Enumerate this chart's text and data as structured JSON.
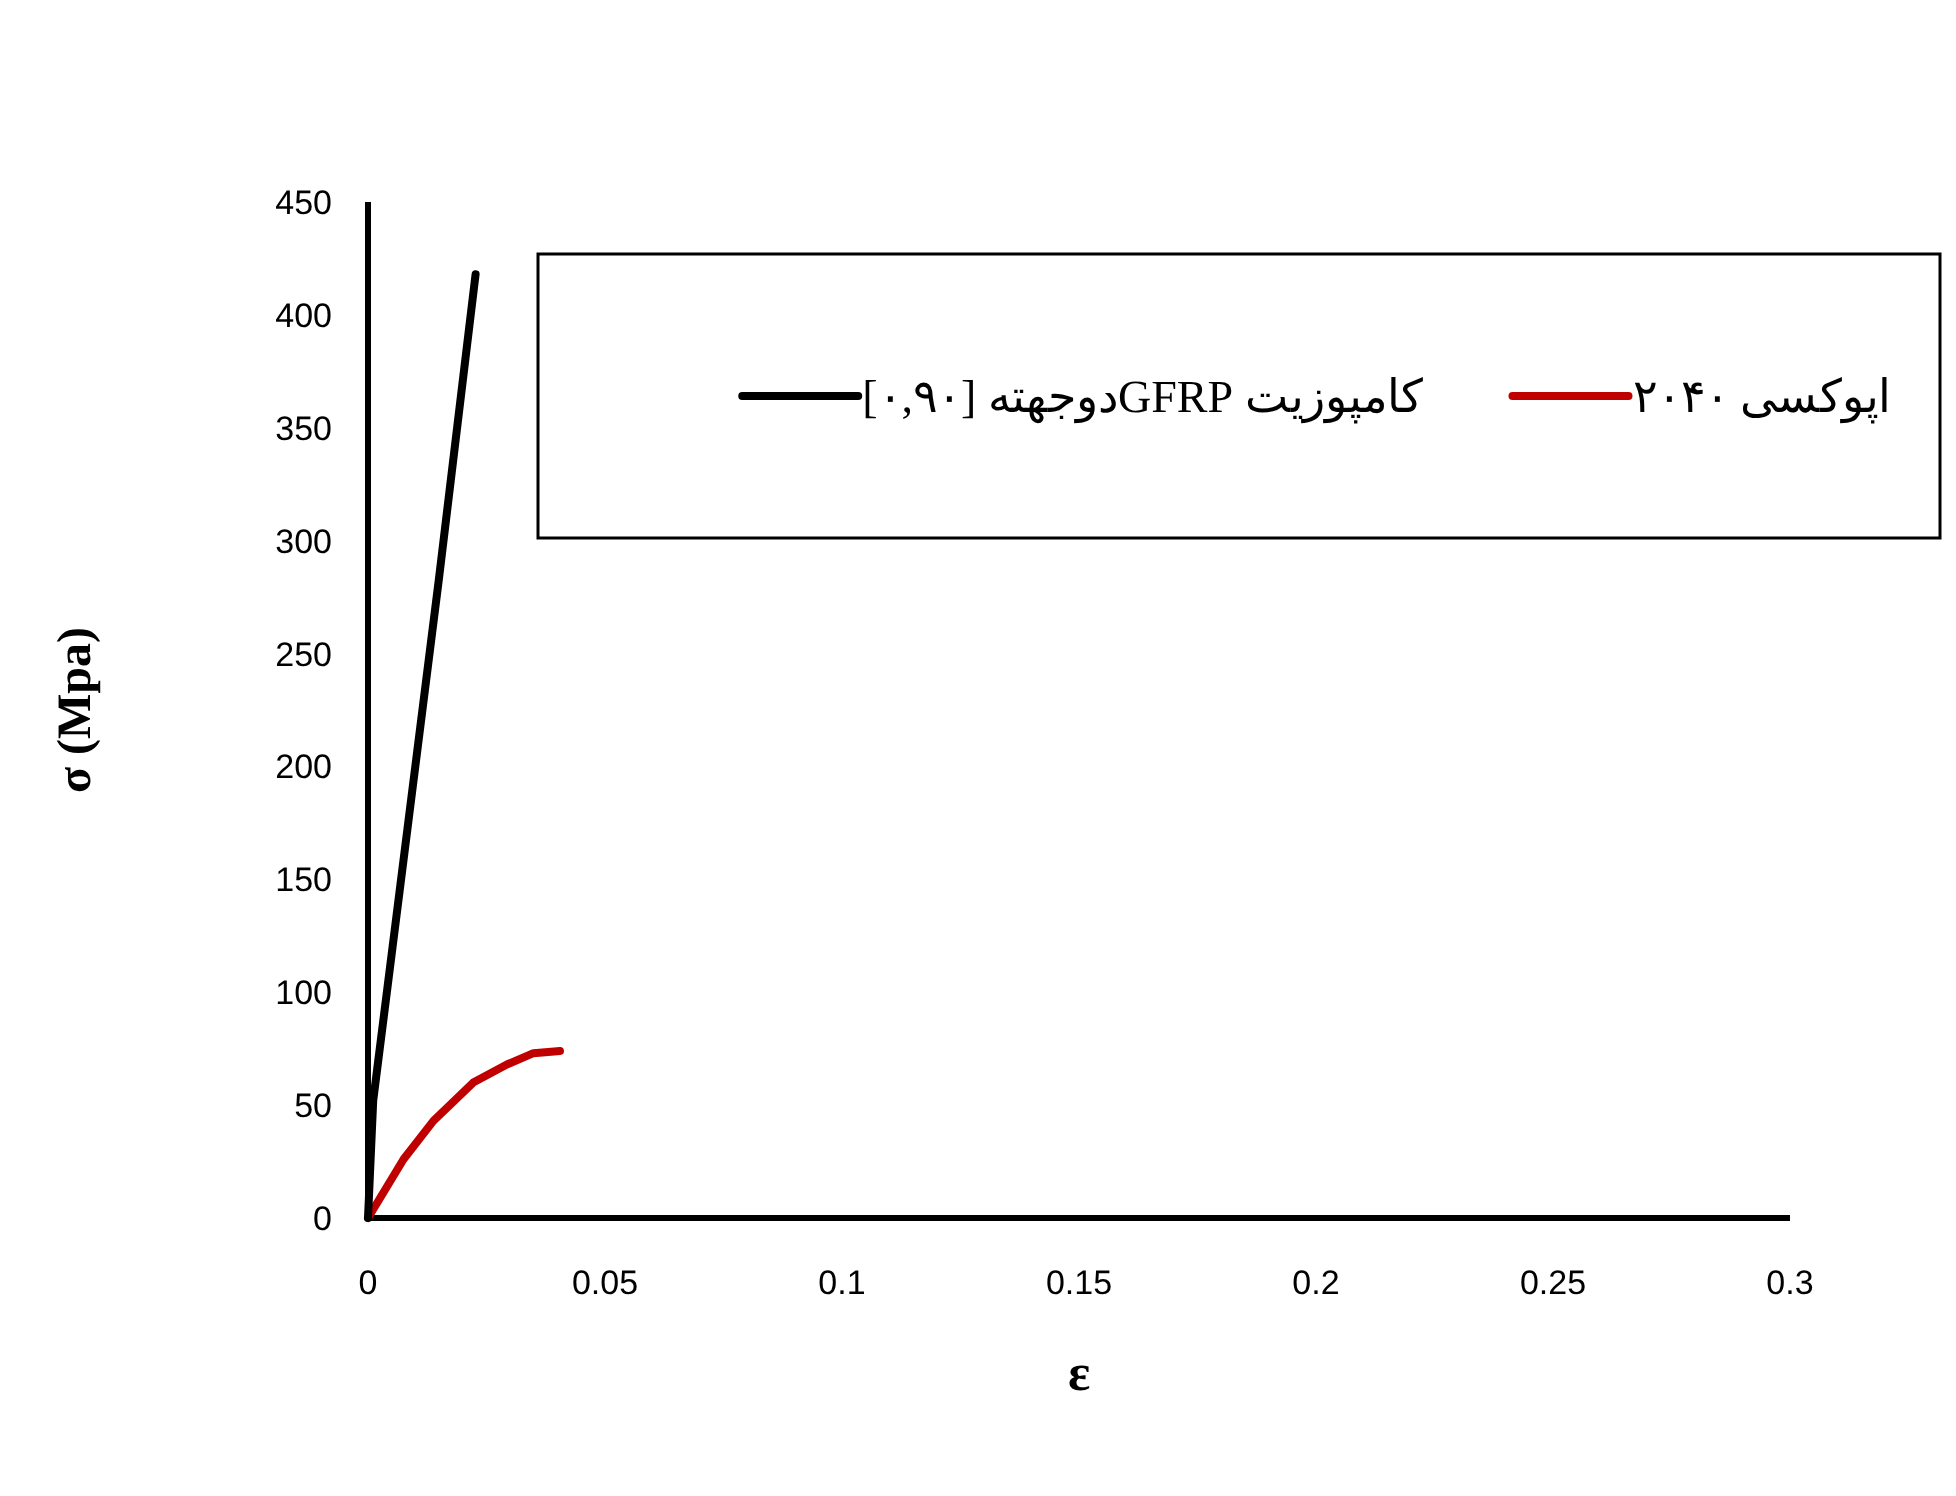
{
  "chart_data": {
    "type": "line",
    "xlabel": "ε",
    "ylabel": "σ (Mpa)",
    "xlim": [
      0,
      0.3
    ],
    "xticks": [
      0,
      0.05,
      0.1,
      0.15,
      0.2,
      0.25,
      0.3
    ],
    "ylim": [
      0,
      450
    ],
    "yticks": [
      0,
      50,
      100,
      150,
      200,
      250,
      300,
      350,
      400,
      450
    ],
    "grid": false,
    "legend": "top right",
    "marker": "none",
    "line_style": "solid",
    "series": [
      {
        "name": "اپوکسی ۲۰۴۰",
        "color": "#c00000",
        "x": [
          0,
          0.0075,
          0.0138,
          0.0222,
          0.0293,
          0.0349,
          0.0405
        ],
        "values": [
          0,
          26,
          43,
          60,
          68,
          73,
          74
        ]
      },
      {
        "name": "کامپوزیت  GFRPدوجهته [۰,۹۰]",
        "color": "#000000",
        "x": [
          0,
          0.0011,
          0.0149,
          0.0227
        ],
        "values": [
          0,
          52,
          282,
          418
        ]
      }
    ]
  }
}
